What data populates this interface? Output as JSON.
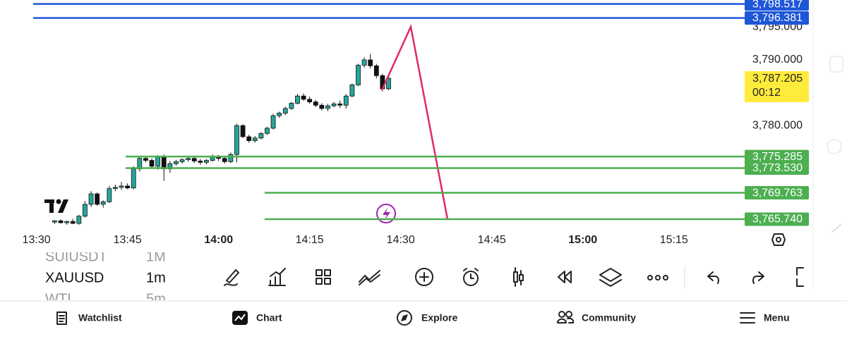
{
  "chart_data": {
    "type": "candlestick",
    "x": [
      "13:33",
      "13:34",
      "13:35",
      "13:36",
      "13:37",
      "13:38",
      "13:39",
      "13:40",
      "13:41",
      "13:42",
      "13:43",
      "13:44",
      "13:45",
      "13:46",
      "13:47",
      "13:48",
      "13:49",
      "13:50",
      "13:51",
      "13:52",
      "13:53",
      "13:54",
      "13:55",
      "13:56",
      "13:57",
      "13:58",
      "13:59",
      "14:00",
      "14:01",
      "14:02",
      "14:03",
      "14:04",
      "14:05",
      "14:06",
      "14:07",
      "14:08",
      "14:09",
      "14:10",
      "14:11",
      "14:12",
      "14:13",
      "14:14",
      "14:15",
      "14:16",
      "14:17",
      "14:18",
      "14:19",
      "14:20",
      "14:21",
      "14:22",
      "14:23",
      "14:24",
      "14:25",
      "14:26",
      "14:27",
      "14:28"
    ],
    "open": [
      3765.3,
      3765.5,
      3765.2,
      3765.4,
      3765.1,
      3766.2,
      3768.0,
      3769.6,
      3768.0,
      3768.4,
      3770.4,
      3770.6,
      3770.8,
      3770.5,
      3773.4,
      3775.0,
      3774.7,
      3773.8,
      3775.2,
      3773.4,
      3774.2,
      3774.5,
      3774.8,
      3775.0,
      3774.6,
      3774.4,
      3774.7,
      3775.2,
      3775.0,
      3774.5,
      3775.6,
      3780.0,
      3778.3,
      3777.7,
      3778.1,
      3778.8,
      3779.6,
      3781.5,
      3781.9,
      3782.6,
      3783.4,
      3784.5,
      3784.0,
      3783.6,
      3783.1,
      3782.6,
      3783.0,
      3783.3,
      3783.1,
      3784.5,
      3786.2,
      3789.2,
      3790.0,
      3789.1,
      3787.6,
      3785.6
    ],
    "high": [
      3765.6,
      3765.7,
      3765.5,
      3765.8,
      3766.4,
      3768.5,
      3770.0,
      3769.8,
      3768.6,
      3770.8,
      3771.0,
      3771.4,
      3771.2,
      3773.8,
      3775.4,
      3775.3,
      3775.0,
      3775.5,
      3775.6,
      3774.6,
      3774.8,
      3775.0,
      3775.3,
      3775.2,
      3774.9,
      3774.9,
      3775.6,
      3775.5,
      3775.4,
      3775.9,
      3780.3,
      3780.2,
      3778.6,
      3778.4,
      3779.0,
      3779.8,
      3781.8,
      3782.1,
      3782.9,
      3783.6,
      3784.8,
      3784.9,
      3784.4,
      3783.9,
      3783.4,
      3783.3,
      3783.6,
      3783.8,
      3784.8,
      3786.4,
      3789.4,
      3790.4,
      3790.9,
      3789.4,
      3787.9,
      3787.4
    ],
    "low": [
      3765.0,
      3765.1,
      3764.9,
      3765.0,
      3764.9,
      3766.0,
      3767.6,
      3767.8,
      3767.5,
      3768.2,
      3770.0,
      3770.2,
      3770.3,
      3770.3,
      3773.0,
      3774.4,
      3773.5,
      3773.3,
      3771.6,
      3772.8,
      3773.9,
      3774.2,
      3774.5,
      3774.3,
      3774.0,
      3774.1,
      3774.5,
      3774.6,
      3774.2,
      3774.3,
      3774.4,
      3778.1,
      3777.4,
      3777.4,
      3777.9,
      3778.6,
      3779.4,
      3781.2,
      3781.6,
      3782.4,
      3783.2,
      3783.8,
      3783.3,
      3782.8,
      3782.3,
      3782.2,
      3782.8,
      3782.7,
      3782.6,
      3784.3,
      3786.0,
      3788.8,
      3788.7,
      3787.2,
      3785.2,
      3785.4
    ],
    "close": [
      3765.5,
      3765.2,
      3765.4,
      3765.1,
      3766.2,
      3768.0,
      3769.6,
      3768.0,
      3768.4,
      3770.4,
      3770.6,
      3770.8,
      3770.5,
      3773.4,
      3775.0,
      3774.7,
      3773.8,
      3775.2,
      3773.4,
      3774.2,
      3774.5,
      3774.8,
      3775.0,
      3774.6,
      3774.4,
      3774.7,
      3775.2,
      3775.0,
      3774.5,
      3775.6,
      3780.0,
      3778.3,
      3777.7,
      3778.1,
      3778.8,
      3779.6,
      3781.5,
      3781.9,
      3782.6,
      3783.4,
      3784.5,
      3784.0,
      3783.6,
      3783.1,
      3782.6,
      3783.0,
      3783.3,
      3783.1,
      3784.5,
      3786.2,
      3789.2,
      3790.0,
      3789.1,
      3787.6,
      3785.6,
      3787.2
    ],
    "up_color": "#26a69a",
    "down_color": "#111111",
    "xlim": [
      "13:24",
      "15:27"
    ],
    "xticks": [
      "13:30",
      "13:45",
      "14:00",
      "14:15",
      "14:30",
      "14:45",
      "15:00",
      "15:15"
    ],
    "ylim": [
      3764.24,
      3799.12
    ],
    "yticks": [
      {
        "value": 3780,
        "label": "3,780.000"
      },
      {
        "value": 3790,
        "label": "3,790.000"
      },
      {
        "value": 3795,
        "label": "3,795.000"
      }
    ],
    "price_lines": [
      {
        "value": 3798.517,
        "label": "3,798.517",
        "color": "#1e56d8"
      },
      {
        "value": 3796.381,
        "label": "3,796.381",
        "color": "#1e56d8"
      },
      {
        "value": 3775.285,
        "label": "3,775.285",
        "color": "#4caf50"
      },
      {
        "value": 3773.53,
        "label": "3,773.530",
        "color": "#4caf50"
      },
      {
        "value": 3769.763,
        "label": "3,769.763",
        "color": "#4caf50"
      },
      {
        "value": 3765.74,
        "label": "3,765.740",
        "color": "#4caf50"
      }
    ],
    "last_price": {
      "value": 3787.205,
      "label": "3,787.205",
      "countdown": "00:12",
      "color": "#ffeb3b"
    }
  },
  "symbols": [
    {
      "symbol": "SUIUSDT",
      "interval": "1M"
    },
    {
      "symbol": "XAUUSD",
      "interval": "1m"
    },
    {
      "symbol": "WTI",
      "interval": "5m"
    }
  ],
  "nav": [
    "Watchlist",
    "Chart",
    "Explore",
    "Community",
    "Menu"
  ]
}
